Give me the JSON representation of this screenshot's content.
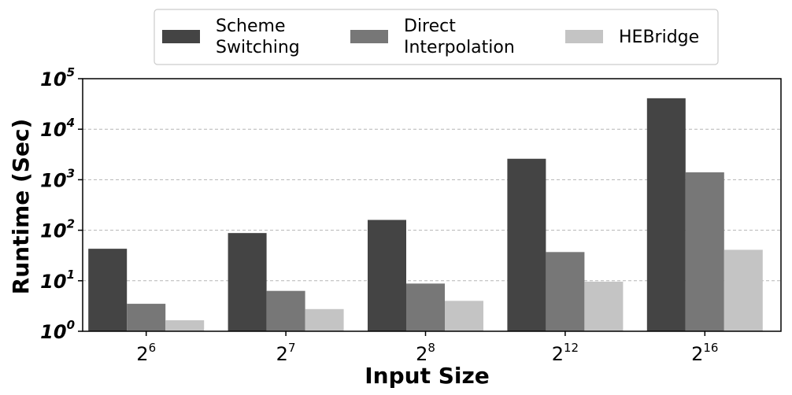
{
  "chart_data": {
    "type": "bar",
    "scale": "log",
    "xlabel": "Input Size",
    "ylabel": "Runtime (Sec)",
    "ylim": [
      1,
      100000
    ],
    "yticks": [
      {
        "value": 1,
        "base": "10",
        "exp": "0"
      },
      {
        "value": 10,
        "base": "10",
        "exp": "1"
      },
      {
        "value": 100,
        "base": "10",
        "exp": "2"
      },
      {
        "value": 1000,
        "base": "10",
        "exp": "3"
      },
      {
        "value": 10000,
        "base": "10",
        "exp": "4"
      },
      {
        "value": 100000,
        "base": "10",
        "exp": "5"
      }
    ],
    "categories": [
      {
        "base": "2",
        "exp": "6"
      },
      {
        "base": "2",
        "exp": "7"
      },
      {
        "base": "2",
        "exp": "8"
      },
      {
        "base": "2",
        "exp": "12"
      },
      {
        "base": "2",
        "exp": "16"
      }
    ],
    "series": [
      {
        "name_lines": [
          "Scheme",
          "Switching"
        ],
        "color": "#444444",
        "values": [
          43,
          88,
          160,
          2600,
          41000
        ]
      },
      {
        "name_lines": [
          "Direct",
          "Interpolation"
        ],
        "color": "#777777",
        "values": [
          3.5,
          6.3,
          8.8,
          37,
          1400
        ]
      },
      {
        "name_lines": [
          "HEBridge"
        ],
        "color": "#c4c4c4",
        "values": [
          1.65,
          2.75,
          4.0,
          9.6,
          41
        ]
      }
    ],
    "grid": "y-major-dashed",
    "legend_position": "top-center"
  }
}
